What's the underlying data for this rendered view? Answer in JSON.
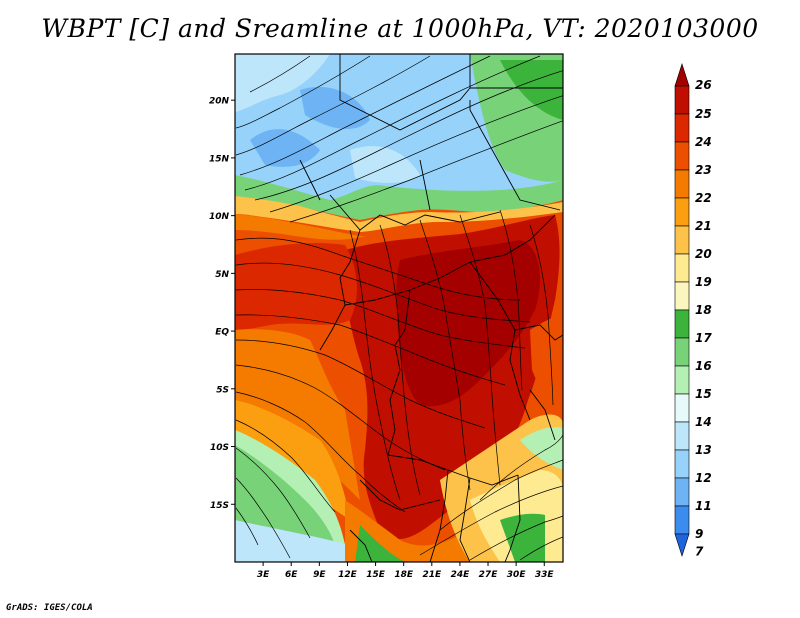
{
  "title": "WBPT [C] and Sreamline at 1000hPa, VT: 2020103000",
  "credit": "GrADS: IGES/COLA",
  "map": {
    "lat_ticks": [
      {
        "lat": 20,
        "label": "20N"
      },
      {
        "lat": 15,
        "label": "15N"
      },
      {
        "lat": 10,
        "label": "10N"
      },
      {
        "lat": 5,
        "label": "5N"
      },
      {
        "lat": 0,
        "label": "EQ"
      },
      {
        "lat": -5,
        "label": "5S"
      },
      {
        "lat": -10,
        "label": "10S"
      },
      {
        "lat": -15,
        "label": "15S"
      }
    ],
    "lon_ticks": [
      {
        "lon": 3,
        "label": "3E"
      },
      {
        "lon": 6,
        "label": "6E"
      },
      {
        "lon": 9,
        "label": "9E"
      },
      {
        "lon": 12,
        "label": "12E"
      },
      {
        "lon": 15,
        "label": "15E"
      },
      {
        "lon": 18,
        "label": "18E"
      },
      {
        "lon": 21,
        "label": "21E"
      },
      {
        "lon": 24,
        "label": "24E"
      },
      {
        "lon": 27,
        "label": "27E"
      },
      {
        "lon": 30,
        "label": "30E"
      },
      {
        "lon": 33,
        "label": "33E"
      }
    ],
    "lat_range": [
      -20,
      24
    ],
    "lon_range": [
      0,
      35
    ]
  },
  "colorbar": {
    "levels": [
      {
        "label": "26",
        "color": "#a50000"
      },
      {
        "label": "25",
        "color": "#c00f00"
      },
      {
        "label": "24",
        "color": "#dc2800"
      },
      {
        "label": "23",
        "color": "#ec4f00"
      },
      {
        "label": "22",
        "color": "#f47a00"
      },
      {
        "label": "21",
        "color": "#fb9e10"
      },
      {
        "label": "20",
        "color": "#fcc24a"
      },
      {
        "label": "19",
        "color": "#feea90"
      },
      {
        "label": "18",
        "color": "#fbf6bd"
      },
      {
        "label": "17",
        "color": "#3cb43c"
      },
      {
        "label": "16",
        "color": "#78d278"
      },
      {
        "label": "15",
        "color": "#b4f0b4"
      },
      {
        "label": "14",
        "color": "#e6fafa"
      },
      {
        "label": "13",
        "color": "#bee6fa"
      },
      {
        "label": "12",
        "color": "#96d2fa"
      },
      {
        "label": "11",
        "color": "#6eb4f5"
      },
      {
        "label": "9",
        "color": "#3c8cf0"
      },
      {
        "label": "7",
        "color": "#1e64dc"
      }
    ]
  }
}
